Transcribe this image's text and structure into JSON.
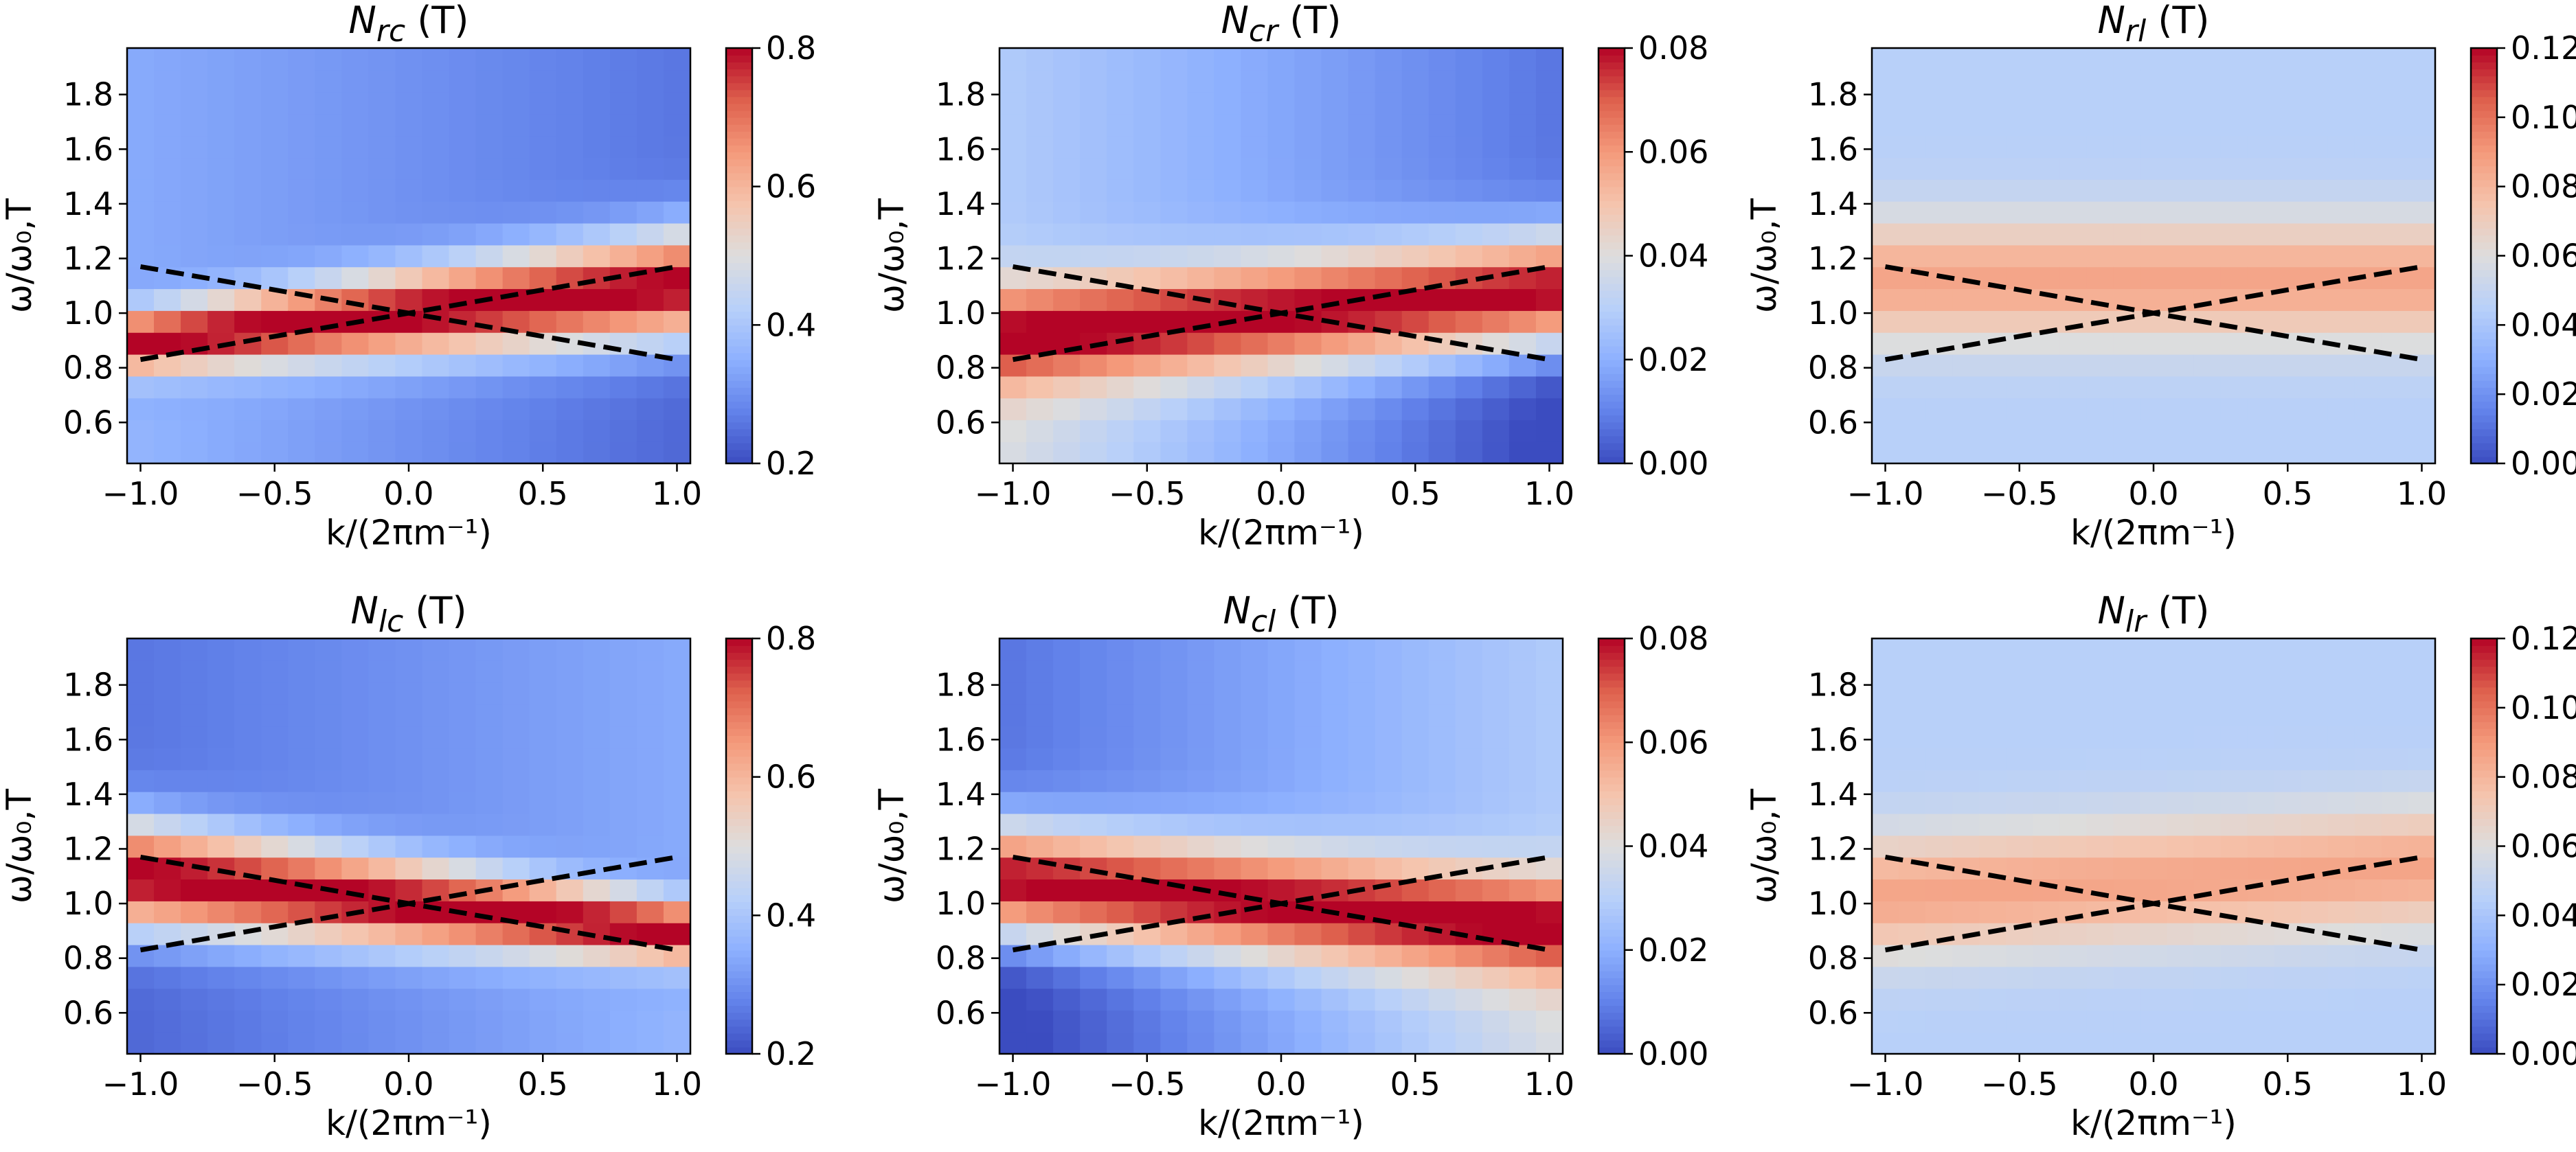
{
  "chart_data": [
    {
      "type": "heatmap",
      "title_main": "N",
      "title_sub": "rc",
      "title_suffix": " (T)",
      "xlabel": "k/(2πm⁻¹)",
      "ylabel": "ω/ω₀,T",
      "xlim": [
        -1.05,
        1.05
      ],
      "ylim": [
        0.45,
        1.97
      ],
      "xticks": [
        -1.0,
        -0.5,
        0.0,
        0.5,
        1.0
      ],
      "xtick_labels": [
        "−1.0",
        "−0.5",
        "0.0",
        "0.5",
        "1.0"
      ],
      "yticks": [
        0.6,
        0.8,
        1.0,
        1.2,
        1.4,
        1.6,
        1.8
      ],
      "ytick_labels": [
        "0.6",
        "0.8",
        "1.0",
        "1.2",
        "1.4",
        "1.6",
        "1.8"
      ],
      "grid": false,
      "colormap": "coolwarm",
      "colorbar": {
        "min": 0.2,
        "max": 0.8,
        "ticks": [
          "0.2",
          "0.4",
          "0.6",
          "0.8"
        ],
        "tick_values": [
          0.2,
          0.4,
          0.6,
          0.8
        ]
      },
      "field": {
        "peak": 0.82,
        "background": 0.3,
        "center_omega": 1.0,
        "center_slope": 0.1,
        "width_base": 0.11,
        "width_slope": 0.03,
        "low_side_slope": 0.06,
        "high_side_slope": 0.04
      },
      "dispersion_lines": [
        {
          "from": [
            -1.0,
            1.17
          ],
          "to": [
            1.0,
            0.83
          ]
        },
        {
          "from": [
            -1.0,
            0.83
          ],
          "to": [
            1.0,
            1.17
          ]
        }
      ]
    },
    {
      "type": "heatmap",
      "title_main": "N",
      "title_sub": "cr",
      "title_suffix": " (T)",
      "xlabel": "k/(2πm⁻¹)",
      "ylabel": "ω/ω₀,T",
      "xlim": [
        -1.05,
        1.05
      ],
      "ylim": [
        0.45,
        1.97
      ],
      "xticks": [
        -1.0,
        -0.5,
        0.0,
        0.5,
        1.0
      ],
      "xtick_labels": [
        "−1.0",
        "−0.5",
        "0.0",
        "0.5",
        "1.0"
      ],
      "yticks": [
        0.6,
        0.8,
        1.0,
        1.2,
        1.4,
        1.6,
        1.8
      ],
      "ytick_labels": [
        "0.6",
        "0.8",
        "1.0",
        "1.2",
        "1.4",
        "1.6",
        "1.8"
      ],
      "grid": false,
      "colormap": "coolwarm",
      "colorbar": {
        "min": 0.0,
        "max": 0.08,
        "ticks": [
          "0.00",
          "0.02",
          "0.04",
          "0.06",
          "0.08"
        ],
        "tick_values": [
          0.0,
          0.02,
          0.04,
          0.06,
          0.08
        ]
      },
      "field": {
        "peak": 0.082,
        "background": 0.018,
        "center_omega": 1.0,
        "center_slope": 0.08,
        "width_base": 0.14,
        "width_slope": 0.01,
        "low_side_slope": 0.02,
        "high_side_slope": 0.01
      },
      "dispersion_lines": [
        {
          "from": [
            -1.0,
            1.17
          ],
          "to": [
            1.0,
            0.83
          ]
        },
        {
          "from": [
            -1.0,
            0.83
          ],
          "to": [
            1.0,
            1.17
          ]
        }
      ]
    },
    {
      "type": "heatmap",
      "title_main": "N",
      "title_sub": "rl",
      "title_suffix": " (T)",
      "xlabel": "k/(2πm⁻¹)",
      "ylabel": "ω/ω₀,T",
      "xlim": [
        -1.05,
        1.05
      ],
      "ylim": [
        0.45,
        1.97
      ],
      "xticks": [
        -1.0,
        -0.5,
        0.0,
        0.5,
        1.0
      ],
      "xtick_labels": [
        "−1.0",
        "−0.5",
        "0.0",
        "0.5",
        "1.0"
      ],
      "yticks": [
        0.6,
        0.8,
        1.0,
        1.2,
        1.4,
        1.6,
        1.8
      ],
      "ytick_labels": [
        "0.6",
        "0.8",
        "1.0",
        "1.2",
        "1.4",
        "1.6",
        "1.8"
      ],
      "grid": false,
      "colormap": "coolwarm",
      "colorbar": {
        "min": 0.0,
        "max": 0.12,
        "ticks": [
          "0.00",
          "0.02",
          "0.04",
          "0.06",
          "0.08",
          "0.10",
          "0.12"
        ],
        "tick_values": [
          0.0,
          0.02,
          0.04,
          0.06,
          0.08,
          0.1,
          0.12
        ]
      },
      "field": {
        "peak": 0.086,
        "background": 0.045,
        "center_omega": 1.12,
        "center_slope": 0.0,
        "width_base": 0.16,
        "width_slope": 0.0,
        "low_side_slope": 0.0,
        "high_side_slope": 0.0
      },
      "dispersion_lines": [
        {
          "from": [
            -1.0,
            1.17
          ],
          "to": [
            1.0,
            0.83
          ]
        },
        {
          "from": [
            -1.0,
            0.83
          ],
          "to": [
            1.0,
            1.17
          ]
        }
      ]
    },
    {
      "type": "heatmap",
      "title_main": "N",
      "title_sub": "lc",
      "title_suffix": " (T)",
      "xlabel": "k/(2πm⁻¹)",
      "ylabel": "ω/ω₀,T",
      "xlim": [
        -1.05,
        1.05
      ],
      "ylim": [
        0.45,
        1.97
      ],
      "xticks": [
        -1.0,
        -0.5,
        0.0,
        0.5,
        1.0
      ],
      "xtick_labels": [
        "−1.0",
        "−0.5",
        "0.0",
        "0.5",
        "1.0"
      ],
      "yticks": [
        0.6,
        0.8,
        1.0,
        1.2,
        1.4,
        1.6,
        1.8
      ],
      "ytick_labels": [
        "0.6",
        "0.8",
        "1.0",
        "1.2",
        "1.4",
        "1.6",
        "1.8"
      ],
      "grid": false,
      "colormap": "coolwarm",
      "colorbar": {
        "min": 0.2,
        "max": 0.8,
        "ticks": [
          "0.2",
          "0.4",
          "0.6",
          "0.8"
        ],
        "tick_values": [
          0.2,
          0.4,
          0.6,
          0.8
        ]
      },
      "field": {
        "peak": 0.82,
        "background": 0.3,
        "center_omega": 1.0,
        "center_slope": -0.1,
        "width_base": 0.11,
        "width_slope": -0.03,
        "low_side_slope": -0.06,
        "high_side_slope": -0.04
      },
      "dispersion_lines": [
        {
          "from": [
            -1.0,
            1.17
          ],
          "to": [
            1.0,
            0.83
          ]
        },
        {
          "from": [
            -1.0,
            0.83
          ],
          "to": [
            1.0,
            1.17
          ]
        }
      ]
    },
    {
      "type": "heatmap",
      "title_main": "N",
      "title_sub": "cl",
      "title_suffix": " (T)",
      "xlabel": "k/(2πm⁻¹)",
      "ylabel": "ω/ω₀,T",
      "xlim": [
        -1.05,
        1.05
      ],
      "ylim": [
        0.45,
        1.97
      ],
      "xticks": [
        -1.0,
        -0.5,
        0.0,
        0.5,
        1.0
      ],
      "xtick_labels": [
        "−1.0",
        "−0.5",
        "0.0",
        "0.5",
        "1.0"
      ],
      "yticks": [
        0.6,
        0.8,
        1.0,
        1.2,
        1.4,
        1.6,
        1.8
      ],
      "ytick_labels": [
        "0.6",
        "0.8",
        "1.0",
        "1.2",
        "1.4",
        "1.6",
        "1.8"
      ],
      "grid": false,
      "colormap": "coolwarm",
      "colorbar": {
        "min": 0.0,
        "max": 0.08,
        "ticks": [
          "0.00",
          "0.02",
          "0.04",
          "0.06",
          "0.08"
        ],
        "tick_values": [
          0.0,
          0.02,
          0.04,
          0.06,
          0.08
        ]
      },
      "field": {
        "peak": 0.082,
        "background": 0.018,
        "center_omega": 1.0,
        "center_slope": -0.08,
        "width_base": 0.14,
        "width_slope": -0.01,
        "low_side_slope": -0.02,
        "high_side_slope": -0.01
      },
      "dispersion_lines": [
        {
          "from": [
            -1.0,
            1.17
          ],
          "to": [
            1.0,
            0.83
          ]
        },
        {
          "from": [
            -1.0,
            0.83
          ],
          "to": [
            1.0,
            1.17
          ]
        }
      ]
    },
    {
      "type": "heatmap",
      "title_main": "N",
      "title_sub": "lr",
      "title_suffix": " (T)",
      "xlabel": "k/(2πm⁻¹)",
      "ylabel": "ω/ω₀,T",
      "xlim": [
        -1.05,
        1.05
      ],
      "ylim": [
        0.45,
        1.97
      ],
      "xticks": [
        -1.0,
        -0.5,
        0.0,
        0.5,
        1.0
      ],
      "xtick_labels": [
        "−1.0",
        "−0.5",
        "0.0",
        "0.5",
        "1.0"
      ],
      "yticks": [
        0.6,
        0.8,
        1.0,
        1.2,
        1.4,
        1.6,
        1.8
      ],
      "ytick_labels": [
        "0.6",
        "0.8",
        "1.0",
        "1.2",
        "1.4",
        "1.6",
        "1.8"
      ],
      "grid": false,
      "colormap": "coolwarm",
      "colorbar": {
        "min": 0.0,
        "max": 0.12,
        "ticks": [
          "0.00",
          "0.02",
          "0.04",
          "0.06",
          "0.08",
          "0.10",
          "0.12"
        ],
        "tick_values": [
          0.0,
          0.02,
          0.04,
          0.06,
          0.08,
          0.1,
          0.12
        ]
      },
      "field": {
        "peak": 0.086,
        "background": 0.045,
        "center_omega": 1.08,
        "center_slope": 0.05,
        "width_base": 0.16,
        "width_slope": 0.0,
        "low_side_slope": 0.0,
        "high_side_slope": 0.0
      },
      "dispersion_lines": [
        {
          "from": [
            -1.0,
            1.17
          ],
          "to": [
            1.0,
            0.83
          ]
        },
        {
          "from": [
            -1.0,
            0.83
          ],
          "to": [
            1.0,
            1.17
          ]
        }
      ]
    }
  ]
}
